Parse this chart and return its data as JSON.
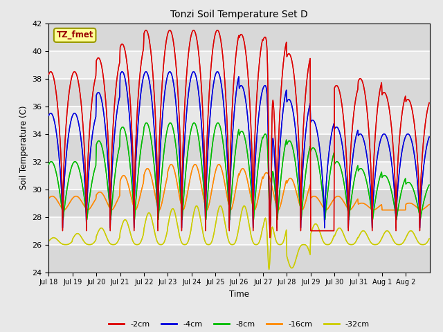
{
  "title": "Tonzi Soil Temperature Set D",
  "ylabel": "Soil Temperature (C)",
  "xlabel": "Time",
  "ylim": [
    24,
    42
  ],
  "yticks": [
    24,
    26,
    28,
    30,
    32,
    34,
    36,
    38,
    40,
    42
  ],
  "annotation_label": "TZ_fmet",
  "legend_labels": [
    "-2cm",
    "-4cm",
    "-8cm",
    "-16cm",
    "-32cm"
  ],
  "line_colors": [
    "#dd0000",
    "#0000dd",
    "#00bb00",
    "#ff8800",
    "#cccc00"
  ],
  "fig_facecolor": "#e8e8e8",
  "ax_facecolor": "#e8e8e8",
  "grid_color": "#ffffff",
  "n_days": 16,
  "points_per_day": 48,
  "peak_hour": 14.0,
  "x_tick_labels": [
    "Jul 18",
    "Jul 19",
    "Jul 20",
    "Jul 21",
    "Jul 22",
    "Jul 23",
    "Jul 24",
    "Jul 25",
    "Jul 26",
    "Jul 27",
    "Jul 28",
    "Jul 29",
    "Jul 30",
    "Jul 31",
    "Aug 1",
    "Aug 2"
  ],
  "peaks_2": [
    38.5,
    38.5,
    39.5,
    40.5,
    41.5,
    41.5,
    41.5,
    41.5,
    41.2,
    41.0,
    39.8,
    27.0,
    37.5,
    38.0,
    37.0,
    36.5
  ],
  "peaks_4": [
    35.5,
    35.5,
    37.0,
    38.5,
    38.5,
    38.5,
    38.5,
    38.5,
    37.5,
    37.5,
    36.5,
    35.0,
    34.5,
    34.0,
    34.0,
    34.0
  ],
  "peaks_8": [
    32.0,
    32.0,
    33.5,
    34.5,
    34.8,
    34.8,
    34.8,
    34.8,
    34.2,
    34.0,
    33.5,
    33.0,
    32.0,
    31.5,
    31.0,
    30.5
  ],
  "peaks_16": [
    29.5,
    29.5,
    29.8,
    31.0,
    31.5,
    31.8,
    31.8,
    31.8,
    31.5,
    31.2,
    30.8,
    29.5,
    29.5,
    29.0,
    28.5,
    29.0
  ],
  "peaks_32": [
    26.5,
    26.8,
    27.2,
    27.8,
    28.3,
    28.6,
    28.8,
    28.8,
    28.8,
    28.5,
    24.3,
    27.5,
    27.2,
    27.0,
    27.0,
    27.0
  ],
  "min_2": 27.0,
  "min_4": 27.2,
  "min_8": 27.8,
  "min_16": 28.5,
  "min_32": 26.0,
  "peak_hour_2": 14.0,
  "peak_hour_4": 14.0,
  "peak_hour_8": 14.5,
  "peak_hour_16": 15.5,
  "peak_hour_32": 17.0,
  "sharp_2": 0.25,
  "sharp_4": 0.3,
  "sharp_8": 0.45,
  "sharp_16": 0.8,
  "sharp_32": 1.5
}
